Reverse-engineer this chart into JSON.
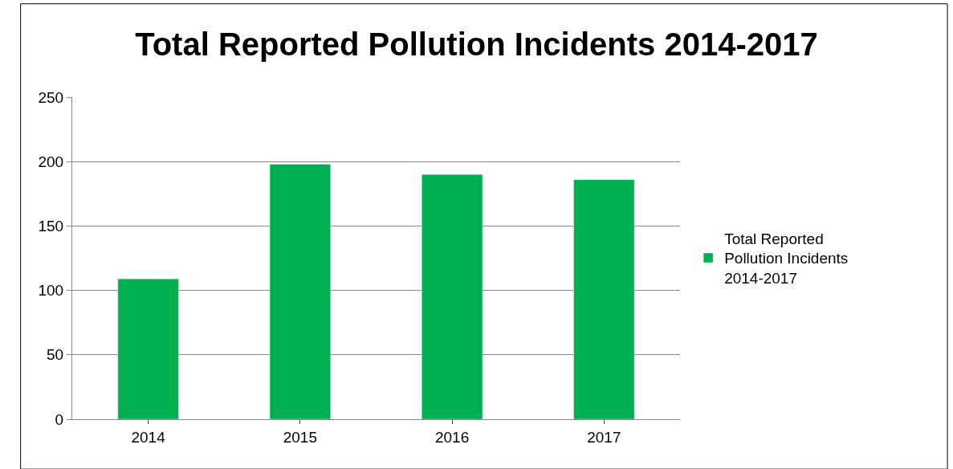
{
  "chart_data": {
    "type": "bar",
    "title": "Total Reported Pollution Incidents 2014-2017",
    "categories": [
      "2014",
      "2015",
      "2016",
      "2017"
    ],
    "series": [
      {
        "name": "Total Reported Pollution Incidents 2014-2017",
        "color": "#00b050",
        "values": [
          109,
          198,
          190,
          186
        ]
      }
    ],
    "ylim": [
      0,
      250
    ],
    "yticks": [
      0,
      50,
      100,
      150,
      200,
      250
    ],
    "grid": "y",
    "legend": "right"
  }
}
